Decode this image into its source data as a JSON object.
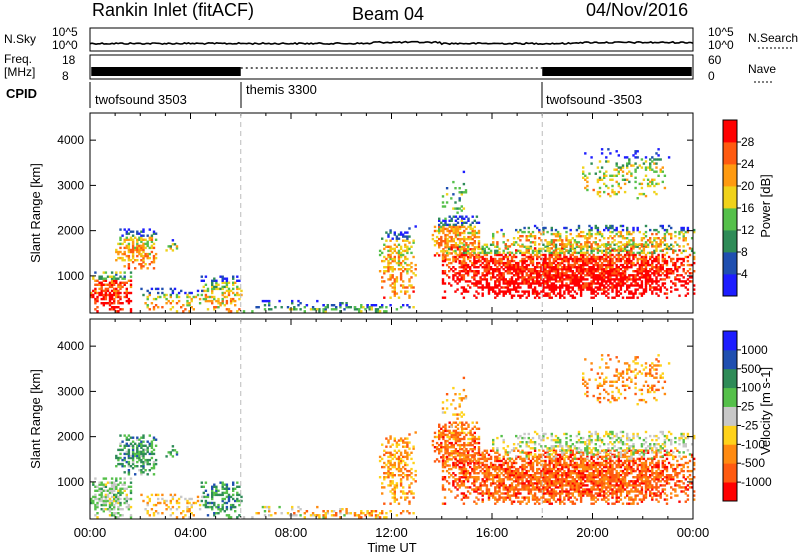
{
  "header": {
    "station": "Rankin Inlet (fitACF)",
    "beam": "Beam 04",
    "date": "04/Nov/2016"
  },
  "strips": {
    "nsky_label": "N.Sky",
    "nsky_ticks": [
      "10^5",
      "10^0"
    ],
    "nsearch_label": "N.Search",
    "nsearch_ticks": [
      "10^5",
      "10^0"
    ],
    "freq_label": "Freq.",
    "freq_unit": "[MHz]",
    "freq_ticks": [
      "18",
      "8"
    ],
    "nave_label": "Nave",
    "nave_ticks": [
      "60",
      "0"
    ],
    "cpid_label": "CPID",
    "cpid_segments": [
      {
        "name": "twofsound 3503",
        "start_h": 0,
        "end_h": 6
      },
      {
        "name": "themis 3300",
        "start_h": 6,
        "end_h": 18
      },
      {
        "name": "twofsound -3503",
        "start_h": 18,
        "end_h": 24
      }
    ]
  },
  "chart_data": [
    {
      "type": "heatmap",
      "panel": "power",
      "xlabel": "",
      "ylabel": "Slant Range [km]",
      "xlim_hours": [
        0,
        24
      ],
      "ylim": [
        180,
        4600
      ],
      "yticks": [
        1000,
        2000,
        3000,
        4000
      ],
      "colorbar_label": "Power [dB]",
      "colorbar_ticks": [
        "4",
        "8",
        "12",
        "16",
        "20",
        "24",
        "28"
      ],
      "colorbar_colors": [
        "#1d1dff",
        "#1f4fb0",
        "#2e8b57",
        "#55c04a",
        "#f0d21a",
        "#ff9a10",
        "#ff5a10",
        "#ff0000"
      ]
    },
    {
      "type": "heatmap",
      "panel": "velocity",
      "xlabel": "Time UT",
      "ylabel": "Slant Range [km]",
      "xlim_hours": [
        0,
        24
      ],
      "ylim": [
        180,
        4600
      ],
      "yticks": [
        1000,
        2000,
        3000,
        4000
      ],
      "xticks": [
        "00:00",
        "04:00",
        "08:00",
        "12:00",
        "16:00",
        "20:00",
        "00:00"
      ],
      "colorbar_label": "Velocity [m s-1]",
      "colorbar_ticks": [
        "1000",
        "500",
        "100",
        "25",
        "-25",
        "-100",
        "-500",
        "-1000"
      ],
      "colorbar_colors": [
        "#1d1dff",
        "#1f4fb0",
        "#2e8b57",
        "#55c04a",
        "#c8c8c8",
        "#ffd21a",
        "#ff8a10",
        "#ff5a10",
        "#ff0000"
      ]
    }
  ]
}
